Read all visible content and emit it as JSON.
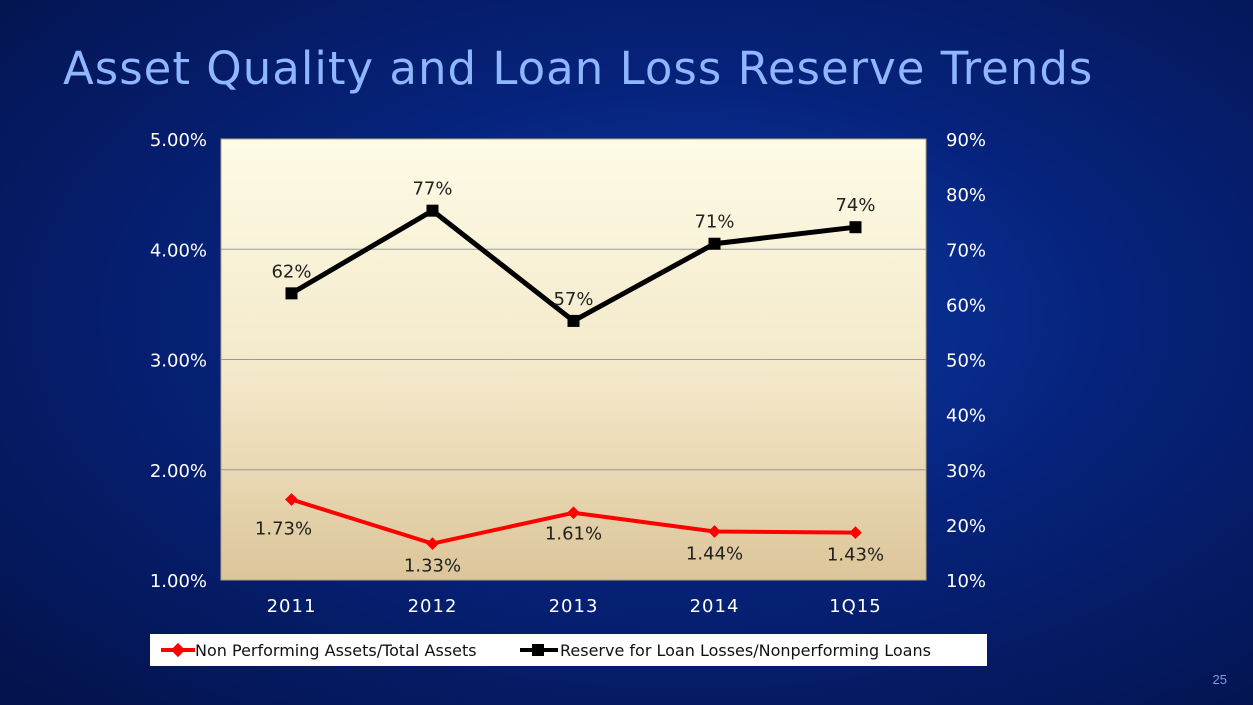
{
  "slide": {
    "title": "Asset Quality and Loan Loss Reserve Trends",
    "page_number": "25"
  },
  "colors": {
    "series_npa": "#ff0000",
    "series_reserve": "#000000",
    "axis_text": "#ffffff",
    "data_label_text": "#222222",
    "gridline": "#9a9a9a"
  },
  "chart_data": {
    "type": "line",
    "title": "",
    "categories": [
      "2011",
      "2012",
      "2013",
      "2014",
      "1Q15"
    ],
    "y_left": {
      "ylim": [
        1.0,
        5.0
      ],
      "ticks": [
        1.0,
        2.0,
        3.0,
        4.0,
        5.0
      ],
      "tick_labels": [
        "1.00%",
        "2.00%",
        "3.00%",
        "4.00%",
        "5.00%"
      ]
    },
    "y_right": {
      "ylim": [
        10,
        90
      ],
      "ticks": [
        10,
        20,
        30,
        40,
        50,
        60,
        70,
        80,
        90
      ],
      "tick_labels": [
        "10%",
        "20%",
        "30%",
        "40%",
        "50%",
        "60%",
        "70%",
        "80%",
        "90%"
      ]
    },
    "gridlines": true,
    "legend_position": "bottom",
    "series": [
      {
        "name": "Non Performing Assets/Total Assets",
        "axis": "left",
        "marker": "diamond",
        "values": [
          1.73,
          1.33,
          1.61,
          1.44,
          1.43
        ],
        "labels": [
          "1.73%",
          "1.33%",
          "1.61%",
          "1.44%",
          "1.43%"
        ]
      },
      {
        "name": "Reserve for Loan Losses/Nonperforming Loans",
        "axis": "right",
        "marker": "square",
        "values": [
          62,
          77,
          57,
          71,
          74
        ],
        "labels": [
          "62%",
          "77%",
          "57%",
          "71%",
          "74%"
        ]
      }
    ]
  }
}
